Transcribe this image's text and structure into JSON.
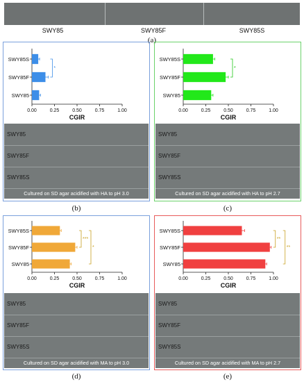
{
  "panel_a": {
    "letter": "(a)",
    "strains": [
      "SWY85",
      "SWY85F",
      "SWY85S"
    ]
  },
  "colors": {
    "b": "#3d8ee8",
    "c": "#22e81a",
    "d": "#f0a838",
    "e": "#f04040",
    "sig_b": "#3d8ee8",
    "sig_c": "#22c81a",
    "sig_d": "#c8a020",
    "sig_e": "#c8a020",
    "frame_b": "#7aa0dc",
    "frame_c": "#6ad26a",
    "frame_d": "#7aa0dc",
    "frame_e": "#e85a5a",
    "plate": "#757a7a"
  },
  "chart_data": [
    {
      "panel": "(b)",
      "type": "bar",
      "orientation": "horizontal",
      "categories": [
        "SWY85S",
        "SWY85F",
        "SWY85"
      ],
      "values": [
        0.07,
        0.15,
        0.08
      ],
      "errors": [
        0.015,
        0.03,
        0.015
      ],
      "xlabel": "CGIR",
      "xlim": [
        0,
        1
      ],
      "xticks": [
        "0.00",
        "0.25",
        "0.50",
        "0.75",
        "1.00"
      ],
      "significance": [
        "*"
      ],
      "plate_rows": [
        "SWY85",
        "SWY85F",
        "SWY85S"
      ],
      "caption": "Cultured on SD agar acidified with HA to pH 3.0"
    },
    {
      "panel": "(c)",
      "type": "bar",
      "orientation": "horizontal",
      "categories": [
        "SWY85S",
        "SWY85F",
        "SWY85"
      ],
      "values": [
        0.33,
        0.47,
        0.31
      ],
      "errors": [
        0.02,
        0.03,
        0.02
      ],
      "xlabel": "CGIR",
      "xlim": [
        0,
        1
      ],
      "xticks": [
        "0.00",
        "0.25",
        "0.50",
        "0.75",
        "1.00"
      ],
      "significance": [
        "*"
      ],
      "plate_rows": [
        "SWY85",
        "SWY85F",
        "SWY85S"
      ],
      "caption": "Cultured on SD agar acidified with HA to pH 2.7"
    },
    {
      "panel": "(d)",
      "type": "bar",
      "orientation": "horizontal",
      "categories": [
        "SWY85S",
        "SWY85F",
        "SWY85"
      ],
      "values": [
        0.31,
        0.48,
        0.42
      ],
      "errors": [
        0.015,
        0.02,
        0.015
      ],
      "xlabel": "CGIR",
      "xlim": [
        0,
        1
      ],
      "xticks": [
        "0.00",
        "0.25",
        "0.50",
        "0.75",
        "1.00"
      ],
      "significance": [
        "***",
        "*"
      ],
      "plate_rows": [
        "SWY85",
        "SWY85F",
        "SWY85S"
      ],
      "caption": "Cultured on SD agar acidified with MA to pH 3.0"
    },
    {
      "panel": "(e)",
      "type": "bar",
      "orientation": "horizontal",
      "categories": [
        "SWY85S",
        "SWY85F",
        "SWY85"
      ],
      "values": [
        0.65,
        0.96,
        0.91
      ],
      "errors": [
        0.03,
        0.015,
        0.015
      ],
      "xlabel": "CGIR",
      "xlim": [
        0,
        1
      ],
      "xticks": [
        "0.00",
        "0.25",
        "0.50",
        "0.75",
        "1.00"
      ],
      "significance": [
        "**",
        "**"
      ],
      "plate_rows": [
        "SWY85",
        "SWY85F",
        "SWY85S"
      ],
      "caption": "Cultured on SD agar acidified with MA to pH 2.7"
    }
  ]
}
